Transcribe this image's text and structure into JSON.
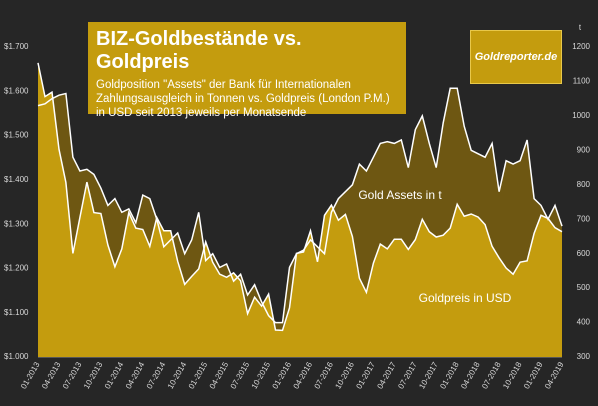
{
  "chart_data": {
    "type": "area",
    "title": "BIZ-Goldbestände vs. Goldpreis",
    "subtitle": "Goldposition \"Assets\" der Bank für Internationalen Zahlungsausgleich in Tonnen vs. Goldpreis (London P.M.) in USD seit 2013 jeweils per Monatsende",
    "logo": "Goldreporter.de",
    "y2_label": "t",
    "categories": [
      "01-2013",
      null,
      null,
      "04-2013",
      null,
      null,
      "07-2013",
      null,
      null,
      "10-2013",
      null,
      null,
      "01-2014",
      null,
      null,
      "04-2014",
      null,
      null,
      "07-2014",
      null,
      null,
      "10-2014",
      null,
      null,
      "01-2015",
      null,
      null,
      "04-2015",
      null,
      null,
      "07-2015",
      null,
      null,
      "10-2015",
      null,
      null,
      "01-2016",
      null,
      null,
      "04-2016",
      null,
      null,
      "07-2016",
      null,
      null,
      "10-2016",
      null,
      null,
      "01-2017",
      null,
      null,
      "04-2017",
      null,
      null,
      "07-2017",
      null,
      null,
      "10-2017",
      null,
      null,
      "01-2018",
      null,
      null,
      "04-2018",
      null,
      null,
      "07-2018",
      null,
      null,
      "10-2018",
      null,
      null,
      "01-2019",
      null,
      null,
      "04-2019"
    ],
    "series": [
      {
        "name": "Gold Assets in t",
        "color": "#6e5712",
        "axis": "y2",
        "values": [
          1030,
          1035,
          1050,
          1060,
          1065,
          880,
          840,
          845,
          830,
          790,
          740,
          760,
          720,
          730,
          690,
          770,
          760,
          700,
          620,
          640,
          660,
          600,
          640,
          720,
          580,
          600,
          560,
          570,
          520,
          540,
          480,
          510,
          460,
          420,
          400,
          400,
          560,
          600,
          610,
          640,
          620,
          600,
          720,
          760,
          780,
          800,
          860,
          840,
          880,
          920,
          925,
          920,
          930,
          850,
          960,
          1000,
          920,
          850,
          980,
          1080,
          1080,
          970,
          900,
          890,
          880,
          920,
          780,
          870,
          860,
          870,
          930,
          760,
          740,
          700,
          740,
          680
        ]
      },
      {
        "name": "Goldpreis in USD",
        "color": "#c49c0e",
        "values": [
          1664,
          1588,
          1598,
          1469,
          1394,
          1234,
          1315,
          1395,
          1326,
          1324,
          1253,
          1204,
          1244,
          1326,
          1291,
          1288,
          1250,
          1315,
          1285,
          1285,
          1216,
          1164,
          1182,
          1199,
          1260,
          1214,
          1187,
          1180,
          1190,
          1172,
          1098,
          1135,
          1115,
          1142,
          1061,
          1060,
          1111,
          1234,
          1237,
          1285,
          1215,
          1320,
          1343,
          1309,
          1322,
          1272,
          1178,
          1146,
          1212,
          1255,
          1244,
          1266,
          1266,
          1243,
          1265,
          1311,
          1283,
          1271,
          1275,
          1291,
          1345,
          1318,
          1323,
          1316,
          1299,
          1250,
          1224,
          1201,
          1187,
          1214,
          1217,
          1279,
          1320,
          1313,
          1292,
          1283
        ]
      }
    ],
    "ylim": [
      1000,
      1700
    ],
    "yticks": [
      {
        "value": 1000,
        "label": "$1.000"
      },
      {
        "value": 1100,
        "label": "$1.100"
      },
      {
        "value": 1200,
        "label": "$1.200"
      },
      {
        "value": 1300,
        "label": "$1.300"
      },
      {
        "value": 1400,
        "label": "$1.400"
      },
      {
        "value": 1500,
        "label": "$1.500"
      },
      {
        "value": 1600,
        "label": "$1.600"
      },
      {
        "value": 1700,
        "label": "$1.700"
      }
    ],
    "y2lim": [
      300,
      1200
    ],
    "y2ticks": [
      300,
      400,
      500,
      600,
      700,
      800,
      900,
      1000,
      1100,
      1200
    ]
  }
}
